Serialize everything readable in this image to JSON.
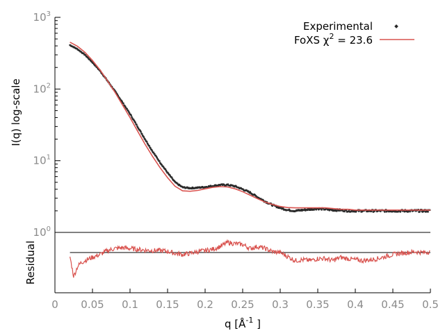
{
  "chart_data": [
    {
      "type": "scatter",
      "panel": "main",
      "ylabel": "I(q) log-scale",
      "yscale": "log",
      "ylim": [
        1,
        1000
      ],
      "xlim": [
        0,
        0.5
      ],
      "ytick_base": "10",
      "yticks": [
        {
          "value": 1,
          "exp": "0"
        },
        {
          "value": 10,
          "exp": "1"
        },
        {
          "value": 100,
          "exp": "2"
        },
        {
          "value": 1000,
          "exp": "3"
        }
      ],
      "legend_position": "top-right",
      "grid": false,
      "series": [
        {
          "name": "Experimental",
          "kind": "points",
          "color": "#2a2a2a",
          "x": [
            0.02,
            0.03,
            0.04,
            0.05,
            0.06,
            0.07,
            0.08,
            0.09,
            0.1,
            0.11,
            0.12,
            0.13,
            0.14,
            0.15,
            0.16,
            0.17,
            0.18,
            0.19,
            0.2,
            0.21,
            0.22,
            0.23,
            0.24,
            0.25,
            0.26,
            0.27,
            0.28,
            0.29,
            0.3,
            0.31,
            0.32,
            0.33,
            0.34,
            0.35,
            0.36,
            0.37,
            0.38,
            0.39,
            0.4,
            0.41,
            0.42,
            0.43,
            0.44,
            0.45,
            0.46,
            0.47,
            0.48,
            0.49,
            0.5
          ],
          "y": [
            410,
            360,
            300,
            235,
            180,
            130,
            93,
            65,
            45,
            30,
            20,
            13.5,
            9.5,
            6.8,
            5.0,
            4.25,
            4.15,
            4.2,
            4.3,
            4.45,
            4.6,
            4.6,
            4.4,
            4.0,
            3.6,
            3.1,
            2.7,
            2.4,
            2.2,
            2.05,
            2.0,
            2.05,
            2.1,
            2.15,
            2.1,
            2.05,
            2.05,
            2.0,
            2.0,
            2.0,
            2.0,
            2.0,
            2.0,
            2.0,
            2.0,
            2.0,
            2.0,
            2.0,
            2.0
          ]
        },
        {
          "name": "FoXS χ² = 23.6",
          "legend_label": "FoXS χ",
          "legend_sup": "2",
          "legend_suffix": " = 23.6",
          "kind": "line",
          "color": "#d9534f",
          "x": [
            0.02,
            0.03,
            0.04,
            0.05,
            0.06,
            0.07,
            0.08,
            0.09,
            0.1,
            0.11,
            0.12,
            0.13,
            0.14,
            0.15,
            0.16,
            0.17,
            0.18,
            0.19,
            0.2,
            0.21,
            0.22,
            0.23,
            0.24,
            0.25,
            0.26,
            0.27,
            0.28,
            0.29,
            0.3,
            0.31,
            0.32,
            0.33,
            0.34,
            0.35,
            0.36,
            0.37,
            0.38,
            0.39,
            0.4,
            0.41,
            0.42,
            0.43,
            0.44,
            0.45,
            0.46,
            0.47,
            0.48,
            0.49,
            0.5
          ],
          "y": [
            450,
            395,
            325,
            250,
            185,
            130,
            90,
            60,
            40,
            26,
            17,
            11.5,
            8.0,
            5.8,
            4.4,
            3.8,
            3.75,
            3.85,
            4.05,
            4.25,
            4.35,
            4.3,
            4.05,
            3.7,
            3.3,
            2.95,
            2.65,
            2.45,
            2.3,
            2.22,
            2.2,
            2.2,
            2.2,
            2.2,
            2.2,
            2.15,
            2.1,
            2.1,
            2.05,
            2.05,
            2.05,
            2.05,
            2.05,
            2.05,
            2.05,
            2.05,
            2.05,
            2.05,
            2.05
          ]
        }
      ]
    },
    {
      "type": "line",
      "panel": "residual",
      "ylabel": "Residual",
      "xlabel_base": "q [Å",
      "xlabel_sup": "-1",
      "xlabel_end": " ]",
      "xlim": [
        0,
        0.5
      ],
      "xticks": [
        0,
        0.05,
        0.1,
        0.15,
        0.2,
        0.25,
        0.3,
        0.35,
        0.4,
        0.45,
        0.5
      ],
      "xtick_labels": [
        "0",
        "0.05",
        "0.1",
        "0.15",
        "0.2",
        "0.25",
        "0.3",
        "0.35",
        "0.4",
        "0.45",
        "0.5"
      ],
      "ylim": [
        -1.0,
        0.5
      ],
      "reference_line": 0,
      "series": [
        {
          "kind": "line",
          "color": "#d9534f",
          "x": [
            0.02,
            0.025,
            0.03,
            0.035,
            0.04,
            0.05,
            0.06,
            0.07,
            0.08,
            0.09,
            0.1,
            0.11,
            0.12,
            0.13,
            0.14,
            0.15,
            0.16,
            0.17,
            0.18,
            0.19,
            0.2,
            0.21,
            0.22,
            0.225,
            0.23,
            0.24,
            0.25,
            0.26,
            0.27,
            0.28,
            0.29,
            0.3,
            0.31,
            0.32,
            0.33,
            0.34,
            0.35,
            0.36,
            0.37,
            0.38,
            0.39,
            0.4,
            0.41,
            0.42,
            0.43,
            0.44,
            0.45,
            0.46,
            0.47,
            0.48,
            0.49,
            0.5
          ],
          "y": [
            -0.1,
            -0.6,
            -0.35,
            -0.25,
            -0.2,
            -0.12,
            -0.05,
            0.05,
            0.1,
            0.12,
            0.1,
            0.08,
            0.06,
            0.05,
            0.05,
            0.03,
            -0.02,
            -0.05,
            -0.02,
            0.02,
            0.05,
            0.08,
            0.15,
            0.2,
            0.25,
            0.22,
            0.2,
            0.1,
            0.15,
            0.1,
            0.02,
            0.0,
            -0.1,
            -0.2,
            -0.18,
            -0.2,
            -0.15,
            -0.15,
            -0.2,
            -0.12,
            -0.15,
            -0.18,
            -0.2,
            -0.18,
            -0.15,
            -0.1,
            -0.05,
            -0.02,
            0.0,
            0.02,
            0.0,
            0.02
          ]
        }
      ]
    }
  ]
}
